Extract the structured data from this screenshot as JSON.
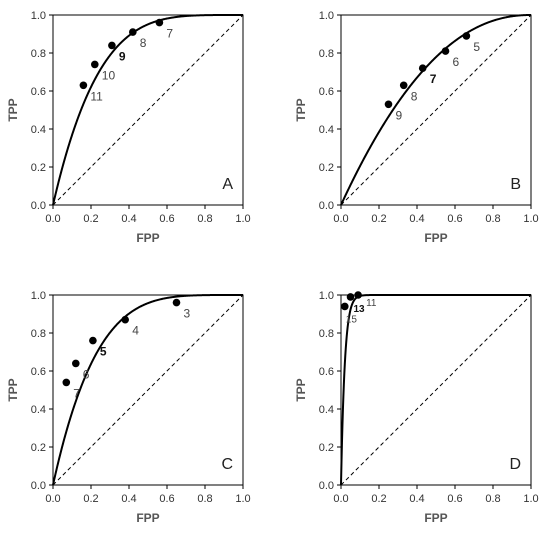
{
  "chart_data": [
    {
      "panel_label": "A",
      "type": "line",
      "xlabel": "FPP",
      "ylabel": "TPP",
      "xlim": [
        0,
        1
      ],
      "ylim": [
        0,
        1
      ],
      "xticks": [
        "0.0",
        "0.2",
        "0.4",
        "0.6",
        "0.8",
        "1.0"
      ],
      "yticks": [
        "0.0",
        "0.2",
        "0.4",
        "0.6",
        "0.8",
        "1.0"
      ],
      "diagonal": "dashed",
      "curve_exponent": 0.23,
      "points": [
        {
          "label": "11",
          "x": 0.16,
          "y": 0.63,
          "bold": false,
          "small": false,
          "anchor": "below-right"
        },
        {
          "label": "10",
          "x": 0.22,
          "y": 0.74,
          "bold": false,
          "small": false,
          "anchor": "below-right"
        },
        {
          "label": "9",
          "x": 0.31,
          "y": 0.84,
          "bold": true,
          "small": false,
          "anchor": "below-right"
        },
        {
          "label": "8",
          "x": 0.42,
          "y": 0.91,
          "bold": false,
          "small": false,
          "anchor": "below-right"
        },
        {
          "label": "7",
          "x": 0.56,
          "y": 0.96,
          "bold": false,
          "small": false,
          "anchor": "below-right"
        }
      ]
    },
    {
      "panel_label": "B",
      "type": "line",
      "xlabel": "FPP",
      "ylabel": "TPP",
      "xlim": [
        0,
        1
      ],
      "ylim": [
        0,
        1
      ],
      "xticks": [
        "0.0",
        "0.2",
        "0.4",
        "0.6",
        "0.8",
        "1.0"
      ],
      "yticks": [
        "0.0",
        "0.2",
        "0.4",
        "0.6",
        "0.8",
        "1.0"
      ],
      "diagonal": "dashed",
      "curve_exponent": 0.46,
      "points": [
        {
          "label": "9",
          "x": 0.25,
          "y": 0.53,
          "bold": false,
          "small": false,
          "anchor": "below-right"
        },
        {
          "label": "8",
          "x": 0.33,
          "y": 0.63,
          "bold": false,
          "small": false,
          "anchor": "below-right"
        },
        {
          "label": "7",
          "x": 0.43,
          "y": 0.72,
          "bold": true,
          "small": false,
          "anchor": "below-right"
        },
        {
          "label": "6",
          "x": 0.55,
          "y": 0.81,
          "bold": false,
          "small": false,
          "anchor": "below-right"
        },
        {
          "label": "5",
          "x": 0.66,
          "y": 0.89,
          "bold": false,
          "small": false,
          "anchor": "below-right"
        }
      ]
    },
    {
      "panel_label": "C",
      "type": "line",
      "xlabel": "FPP",
      "ylabel": "TPP",
      "xlim": [
        0,
        1
      ],
      "ylim": [
        0,
        1
      ],
      "xticks": [
        "0.0",
        "0.2",
        "0.4",
        "0.6",
        "0.8",
        "1.0"
      ],
      "yticks": [
        "0.0",
        "0.2",
        "0.4",
        "0.6",
        "0.8",
        "1.0"
      ],
      "diagonal": "dashed",
      "curve_exponent": 0.22,
      "points": [
        {
          "label": "7",
          "x": 0.07,
          "y": 0.54,
          "bold": false,
          "small": false,
          "anchor": "below-right"
        },
        {
          "label": "6",
          "x": 0.12,
          "y": 0.64,
          "bold": false,
          "small": false,
          "anchor": "below-right"
        },
        {
          "label": "5",
          "x": 0.21,
          "y": 0.76,
          "bold": true,
          "small": false,
          "anchor": "below-right"
        },
        {
          "label": "4",
          "x": 0.38,
          "y": 0.87,
          "bold": false,
          "small": false,
          "anchor": "below-right"
        },
        {
          "label": "3",
          "x": 0.65,
          "y": 0.96,
          "bold": false,
          "small": false,
          "anchor": "below-right"
        }
      ]
    },
    {
      "panel_label": "D",
      "type": "line",
      "xlabel": "FPP",
      "ylabel": "TPP",
      "xlim": [
        0,
        1
      ],
      "ylim": [
        0,
        1
      ],
      "xticks": [
        "0.0",
        "0.2",
        "0.4",
        "0.6",
        "0.8",
        "1.0"
      ],
      "yticks": [
        "0.0",
        "0.2",
        "0.4",
        "0.6",
        "0.8",
        "1.0"
      ],
      "diagonal": "dashed",
      "curve_exponent": 0.02,
      "points": [
        {
          "label": "15",
          "x": 0.02,
          "y": 0.94,
          "bold": false,
          "small": true,
          "anchor": "below"
        },
        {
          "label": "13",
          "x": 0.05,
          "y": 0.99,
          "bold": true,
          "small": true,
          "anchor": "below-right"
        },
        {
          "label": "11",
          "x": 0.09,
          "y": 1.0,
          "bold": false,
          "small": true,
          "anchor": "right"
        }
      ]
    }
  ]
}
